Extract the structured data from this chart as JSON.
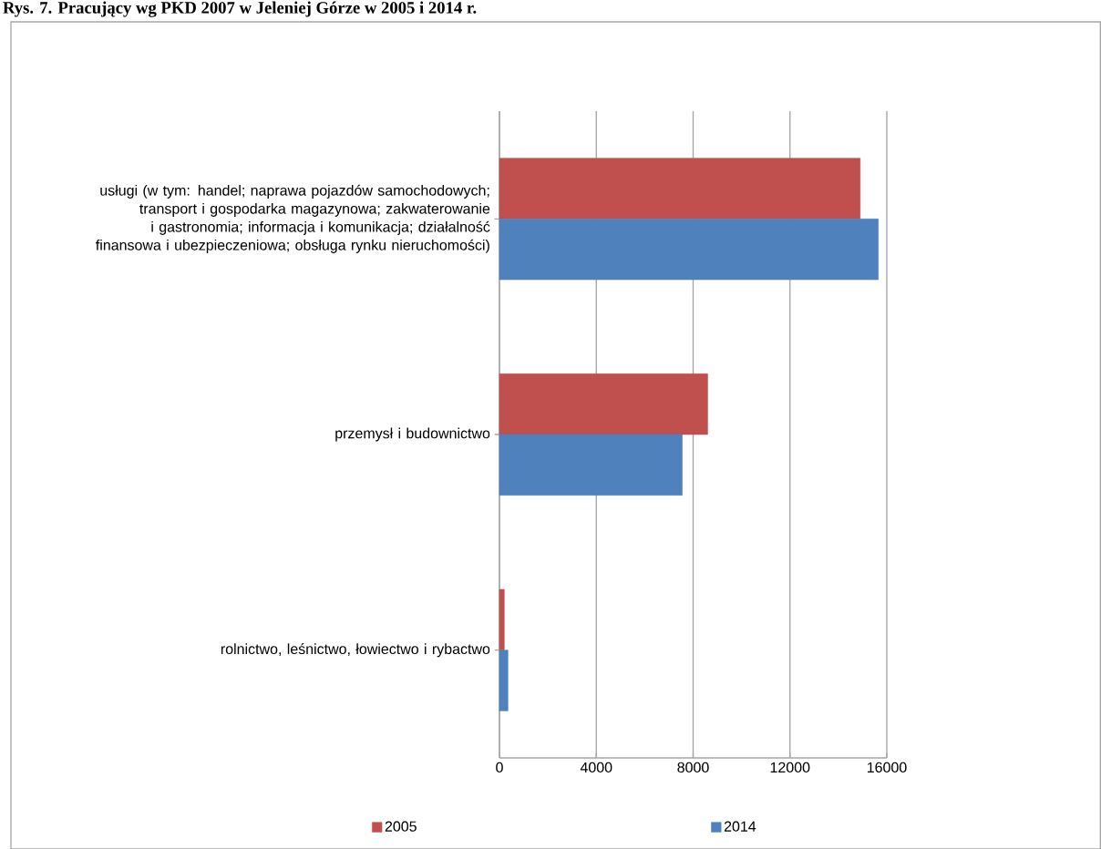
{
  "chart_data": {
    "type": "bar",
    "orientation": "horizontal",
    "title": "Rys. 7. Pracujący wg PKD 2007 w Jeleniej Górze w 2005 i 2014 r.",
    "categories": [
      "usługi (w tym: handel; naprawa pojazdów samochodowych; transport i gospodarka magazynowa; zakwaterowanie i gastronomia; informacja i komunikacja; działalność finansowa i ubezpieczeniowa; obsługa rynku nieruchomości)",
      "przemysł i budownictwo",
      "rolnictwo, leśnictwo, łowiectwo i rybactwo"
    ],
    "series": [
      {
        "name": "2005",
        "color": "#c0504d",
        "values": [
          14900,
          8600,
          200
        ]
      },
      {
        "name": "2014",
        "color": "#4f81bd",
        "values": [
          15650,
          7550,
          350
        ]
      }
    ],
    "xlim": [
      0,
      16000
    ],
    "xticks": [
      0,
      4000,
      8000,
      12000,
      16000
    ],
    "grid": "x",
    "legend": "bottom"
  }
}
